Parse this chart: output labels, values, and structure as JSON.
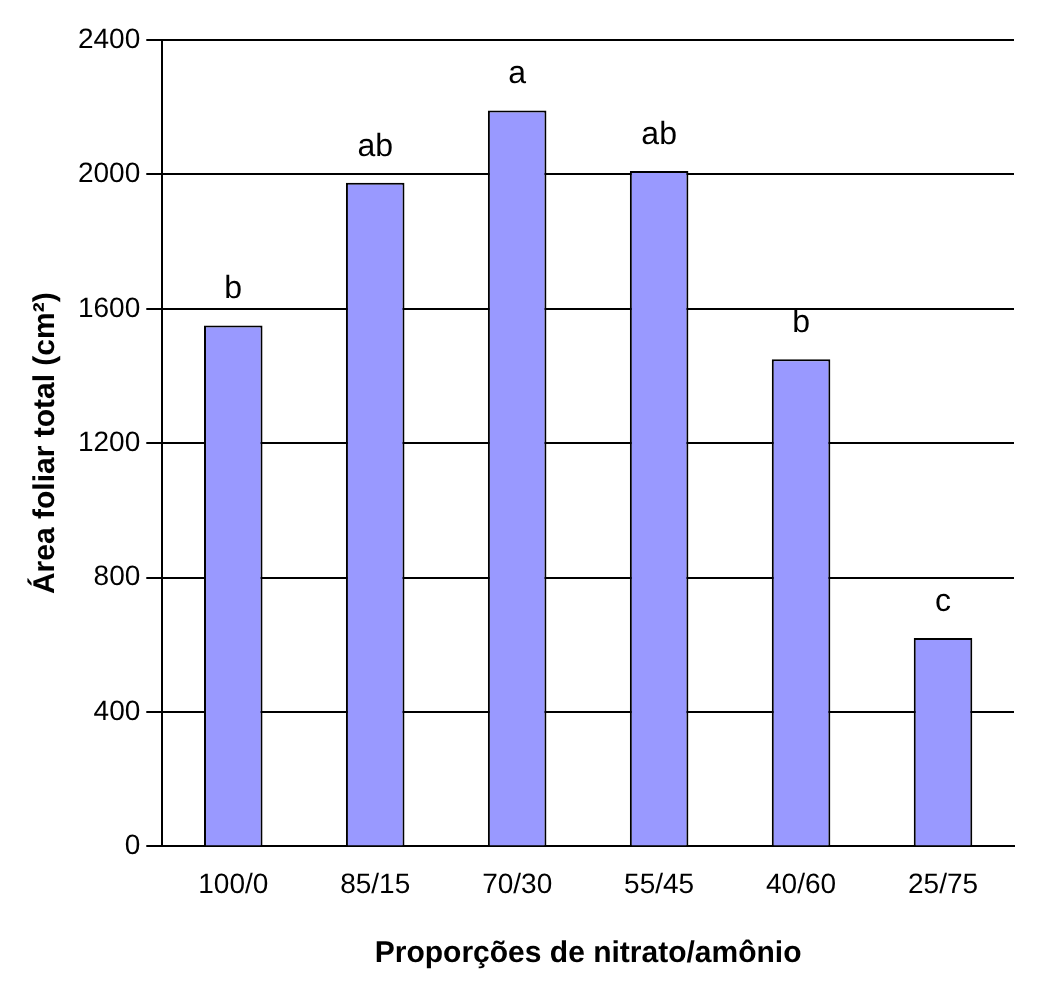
{
  "chart_data": {
    "type": "bar",
    "xlabel": "Proporções de nitrato/amônio",
    "ylabel": "Área foliar total (cm²)",
    "categories": [
      "100/0",
      "85/15",
      "70/30",
      "55/45",
      "40/60",
      "25/75"
    ],
    "values": [
      1550,
      1975,
      2190,
      2010,
      1450,
      620
    ],
    "color": "#9999ff",
    "ylim": [
      0,
      2400
    ],
    "yticks": [
      0,
      400,
      800,
      1200,
      1600,
      2000,
      2400
    ],
    "grid": "y",
    "annotations": [
      {
        "text": "b",
        "x": "100/0",
        "y": 1550
      },
      {
        "text": "ab",
        "x": "85/15",
        "y": 1975
      },
      {
        "text": "a",
        "x": "70/30",
        "y": 2190
      },
      {
        "text": "ab",
        "x": "55/45",
        "y": 2010
      },
      {
        "text": "b",
        "x": "40/60",
        "y": 1450
      },
      {
        "text": "c",
        "x": "25/75",
        "y": 620
      }
    ]
  }
}
